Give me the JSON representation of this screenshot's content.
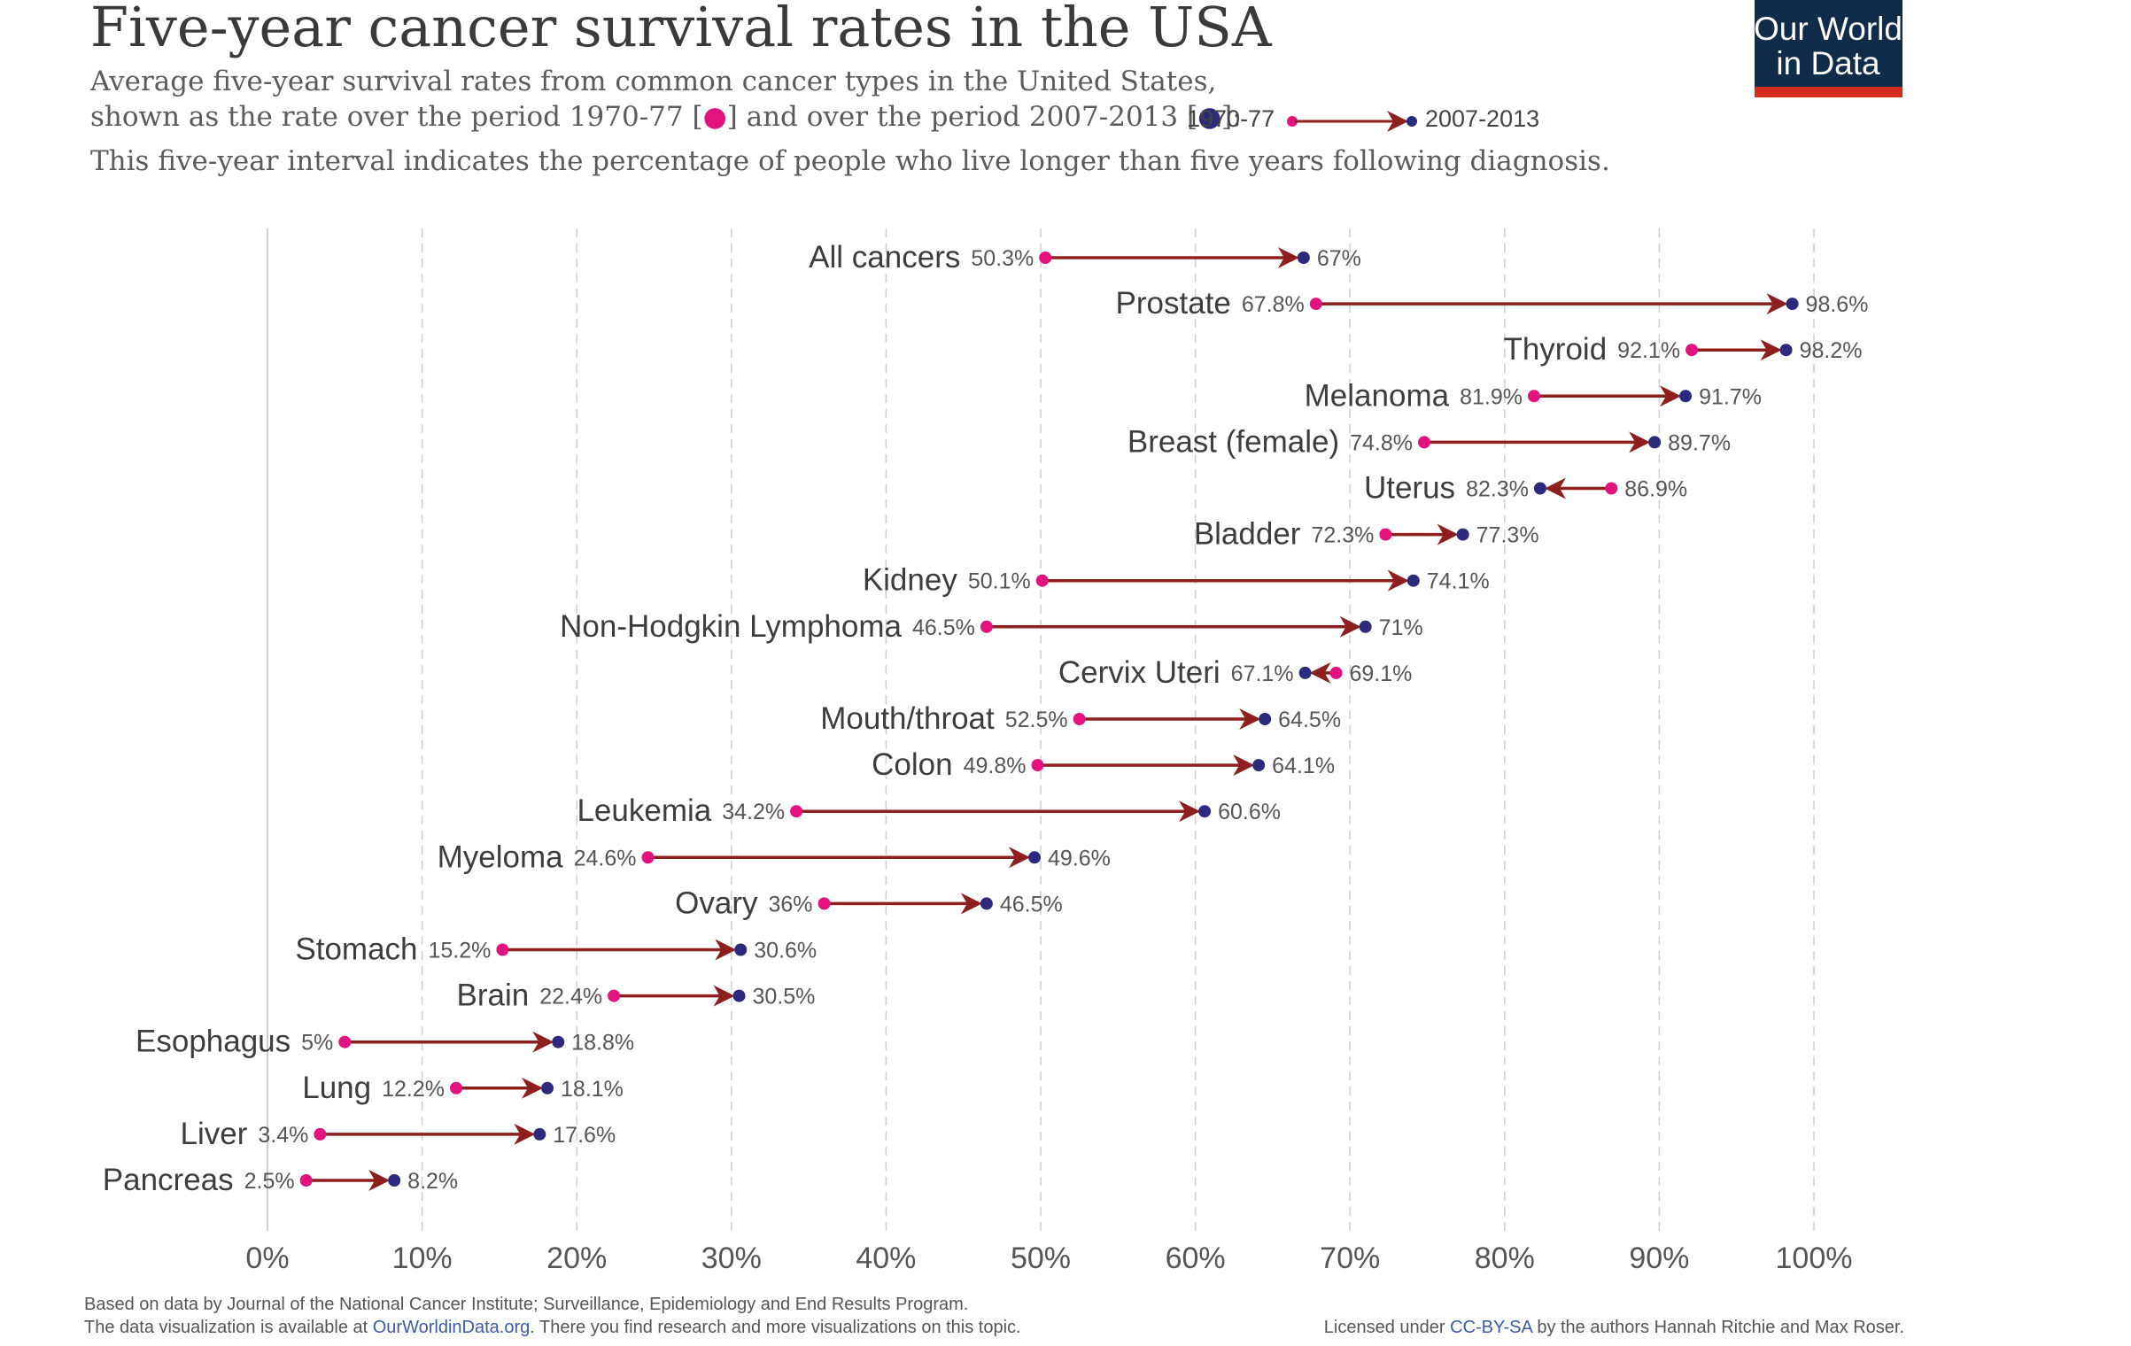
{
  "header": {
    "title": "Five-year cancer survival rates in the USA",
    "subtitle_line1": "Average five-year survival rates from common cancer types in the United States,",
    "subtitle_line2a": " shown as the rate over the period 1970-77 [",
    "subtitle_line2b": "] and over the period 2007-2013 [",
    "subtitle_line2c": "]:",
    "legend_start": "1970-77",
    "legend_end": "2007-2013",
    "subtitle_line3": "This five-year interval indicates the percentage of people who live longer than five years following diagnosis."
  },
  "logo": {
    "line1": "Our World",
    "line2": "in Data",
    "bg": "#0f2c4b",
    "accent": "#d52b1e"
  },
  "footer": {
    "source_line": "Based on data by Journal of the National Cancer Institute; Surveillance, Epidemiology and End Results Program.",
    "available_prefix": "The data visualization is available at ",
    "available_link": "OurWorldinData.org",
    "available_suffix": ". There you find research and more visualizations on this topic.",
    "license_prefix": "Licensed under ",
    "license_link": "CC-BY-SA",
    "license_suffix": " by the authors Hannah Ritchie and Max Roser."
  },
  "colors": {
    "start_dot": "#e2137e",
    "end_dot": "#2b2a7c",
    "arrow": "#8e1f1f",
    "grid": "#cfcfcf"
  },
  "chart_data": {
    "type": "arrow-dot",
    "xlim": [
      0,
      100
    ],
    "x_ticks": [
      0,
      10,
      20,
      30,
      40,
      50,
      60,
      70,
      80,
      90,
      100
    ],
    "x_tick_labels": [
      "0%",
      "10%",
      "20%",
      "30%",
      "40%",
      "50%",
      "60%",
      "70%",
      "80%",
      "90%",
      "100%"
    ],
    "grid": "vertical dashed",
    "series_names": [
      "1970-77",
      "2007-2013"
    ],
    "rows": [
      {
        "category": "All cancers",
        "start": 50.3,
        "end": 67,
        "start_label": "50.3%",
        "end_label": "67%"
      },
      {
        "category": "Prostate",
        "start": 67.8,
        "end": 98.6,
        "start_label": "67.8%",
        "end_label": "98.6%"
      },
      {
        "category": "Thyroid",
        "start": 92.1,
        "end": 98.2,
        "start_label": "92.1%",
        "end_label": "98.2%"
      },
      {
        "category": "Melanoma",
        "start": 81.9,
        "end": 91.7,
        "start_label": "81.9%",
        "end_label": "91.7%"
      },
      {
        "category": "Breast (female)",
        "start": 74.8,
        "end": 89.7,
        "start_label": "74.8%",
        "end_label": "89.7%"
      },
      {
        "category": "Uterus",
        "start": 86.9,
        "end": 82.3,
        "start_label": "86.9%",
        "end_label": "82.3%"
      },
      {
        "category": "Bladder",
        "start": 72.3,
        "end": 77.3,
        "start_label": "72.3%",
        "end_label": "77.3%"
      },
      {
        "category": "Kidney",
        "start": 50.1,
        "end": 74.1,
        "start_label": "50.1%",
        "end_label": "74.1%"
      },
      {
        "category": "Non-Hodgkin Lymphoma",
        "start": 46.5,
        "end": 71,
        "start_label": "46.5%",
        "end_label": "71%"
      },
      {
        "category": "Cervix Uteri",
        "start": 69.1,
        "end": 67.1,
        "start_label": "69.1%",
        "end_label": "67.1%"
      },
      {
        "category": "Mouth/throat",
        "start": 52.5,
        "end": 64.5,
        "start_label": "52.5%",
        "end_label": "64.5%"
      },
      {
        "category": "Colon",
        "start": 49.8,
        "end": 64.1,
        "start_label": "49.8%",
        "end_label": "64.1%"
      },
      {
        "category": "Leukemia",
        "start": 34.2,
        "end": 60.6,
        "start_label": "34.2%",
        "end_label": "60.6%"
      },
      {
        "category": "Myeloma",
        "start": 24.6,
        "end": 49.6,
        "start_label": "24.6%",
        "end_label": "49.6%"
      },
      {
        "category": "Ovary",
        "start": 36,
        "end": 46.5,
        "start_label": "36%",
        "end_label": "46.5%"
      },
      {
        "category": "Stomach",
        "start": 15.2,
        "end": 30.6,
        "start_label": "15.2%",
        "end_label": "30.6%"
      },
      {
        "category": "Brain",
        "start": 22.4,
        "end": 30.5,
        "start_label": "22.4%",
        "end_label": "30.5%"
      },
      {
        "category": "Esophagus",
        "start": 5,
        "end": 18.8,
        "start_label": "5%",
        "end_label": "18.8%"
      },
      {
        "category": "Lung",
        "start": 12.2,
        "end": 18.1,
        "start_label": "12.2%",
        "end_label": "18.1%"
      },
      {
        "category": "Liver",
        "start": 3.4,
        "end": 17.6,
        "start_label": "3.4%",
        "end_label": "17.6%"
      },
      {
        "category": "Pancreas",
        "start": 2.5,
        "end": 8.2,
        "start_label": "2.5%",
        "end_label": "8.2%"
      }
    ]
  }
}
